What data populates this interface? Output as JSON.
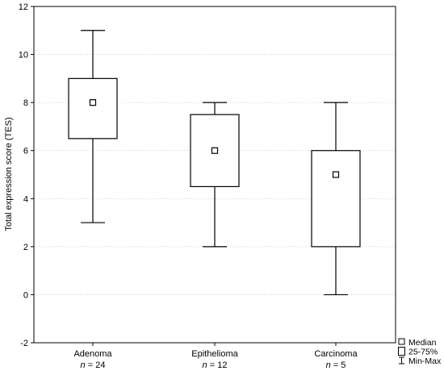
{
  "chart_data": {
    "type": "boxplot",
    "ylabel": "Total expression score (TES)",
    "ylim": [
      -2,
      12
    ],
    "yticks": [
      -2,
      0,
      2,
      4,
      6,
      8,
      10,
      12
    ],
    "grid": "horizontal dotted",
    "legend_position": "bottom-right outside plot",
    "categories": [
      {
        "name": "Adenoma",
        "n_prefix": "n",
        "n_value": "= 24",
        "min": 3,
        "q1": 6.5,
        "median": 8,
        "q3": 9,
        "max": 11
      },
      {
        "name": "Epithelioma",
        "n_prefix": "n",
        "n_value": "= 12",
        "min": 2,
        "q1": 4.5,
        "median": 6,
        "q3": 7.5,
        "max": 8
      },
      {
        "name": "Carcinoma",
        "n_prefix": "n",
        "n_value": "= 5",
        "min": 0,
        "q1": 2,
        "median": 5,
        "q3": 6,
        "max": 8
      }
    ],
    "legend": [
      {
        "symbol": "median-square",
        "label": "Median"
      },
      {
        "symbol": "box",
        "label": "25-75%"
      },
      {
        "symbol": "whisker",
        "label": "Min-Max"
      }
    ]
  }
}
